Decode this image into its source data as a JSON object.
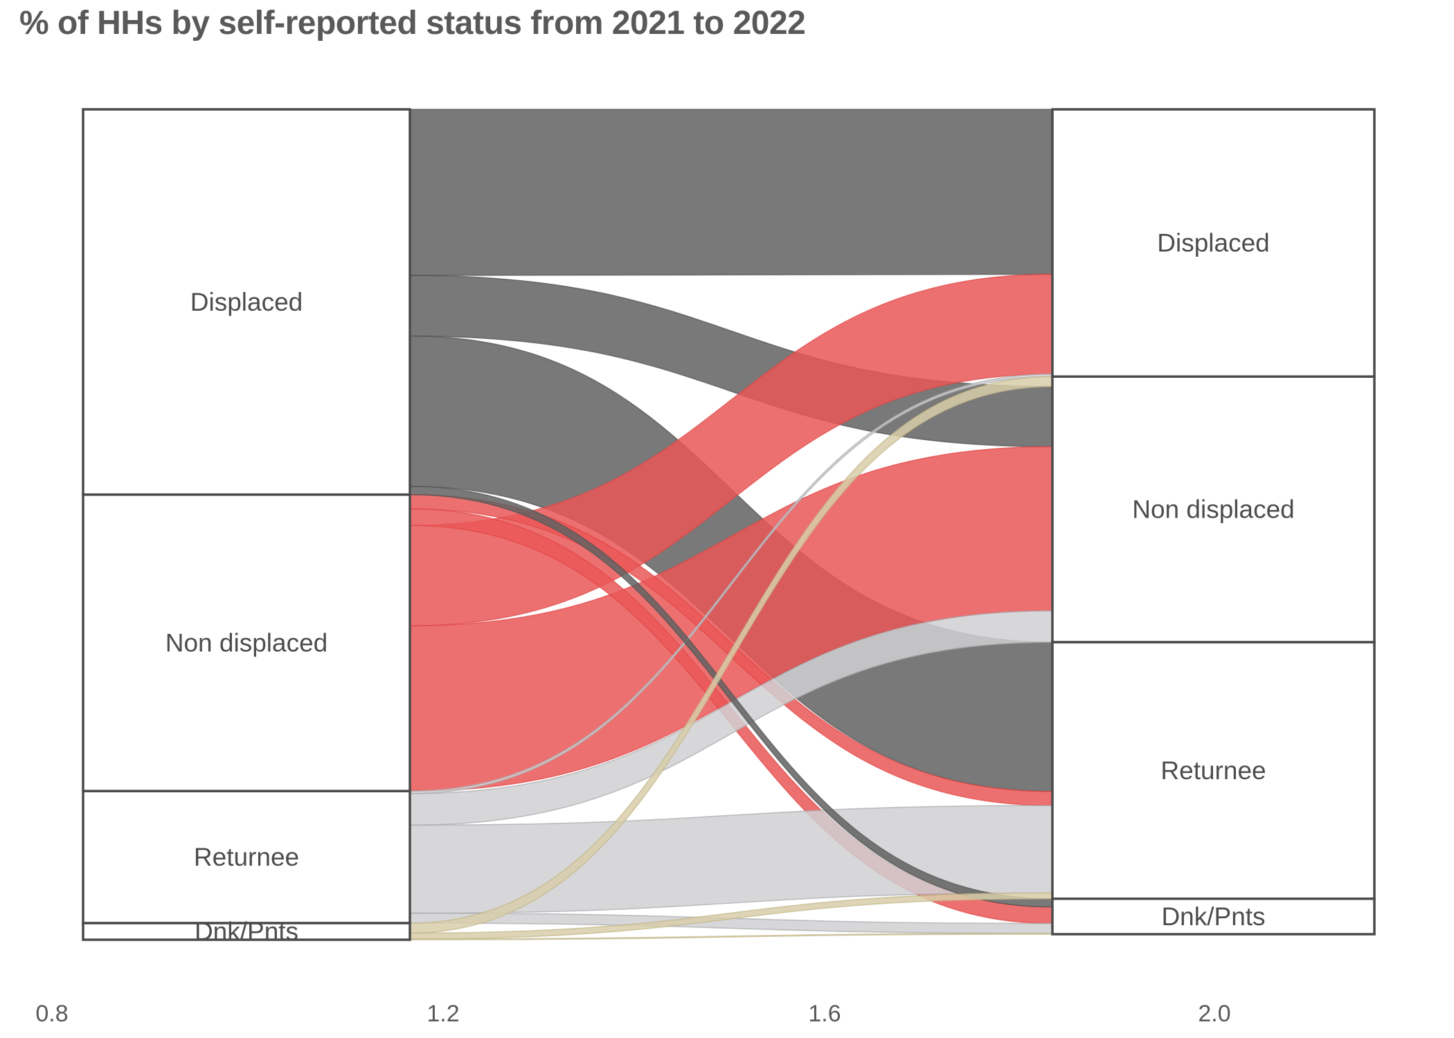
{
  "title": "% of HHs by self-reported status from 2021 to 2022",
  "x_axis_ticks": [
    "0.8",
    "1.2",
    "1.6",
    "2.0"
  ],
  "chart_data": {
    "type": "alluvial",
    "subtype": "sankey-two-column",
    "left_column_year": "2021",
    "right_column_year": "2022",
    "unit": "% of households",
    "grid": "off",
    "strata_2021": [
      {
        "label": "Displaced",
        "pct": 46.4
      },
      {
        "label": "Non displaced",
        "pct": 35.7
      },
      {
        "label": "Returnee",
        "pct": 15.9
      },
      {
        "label": "Dnk/Pnts",
        "pct": 2.0
      }
    ],
    "strata_2022": [
      {
        "label": "Displaced",
        "pct": 32.4
      },
      {
        "label": "Non displaced",
        "pct": 32.2
      },
      {
        "label": "Returnee",
        "pct": 31.1
      },
      {
        "label": "Dnk/Pnts",
        "pct": 4.3
      }
    ],
    "flows": [
      {
        "from": "Displaced",
        "to": "Displaced",
        "pct": 20.0
      },
      {
        "from": "Displaced",
        "to": "Non displaced",
        "pct": 7.3
      },
      {
        "from": "Displaced",
        "to": "Returnee",
        "pct": 18.1
      },
      {
        "from": "Non displaced",
        "to": "Displaced",
        "pct": 12.1
      },
      {
        "from": "Non displaced",
        "to": "Non displaced",
        "pct": 19.9
      },
      {
        "from": "Non displaced",
        "to": "Returnee",
        "pct": 1.7
      },
      {
        "from": "Non displaced",
        "to": "Dnk/Pnts",
        "pct": 2.0
      },
      {
        "from": "Returnee",
        "to": "Displaced",
        "pct": 0.3
      },
      {
        "from": "Returnee",
        "to": "Non displaced",
        "pct": 3.8
      },
      {
        "from": "Returnee",
        "to": "Returnee",
        "pct": 10.6
      },
      {
        "from": "Returnee",
        "to": "Dnk/Pnts",
        "pct": 1.2
      },
      {
        "from": "Displaced",
        "to": "Dnk/Pnts",
        "pct": 1.0
      },
      {
        "from": "Dnk/Pnts",
        "to": "Non displaced",
        "pct": 1.2
      },
      {
        "from": "Dnk/Pnts",
        "to": "Returnee",
        "pct": 0.7
      },
      {
        "from": "Dnk/Pnts",
        "to": "Dnk/Pnts",
        "pct": 0.1
      }
    ],
    "flow_colors_by_origin": {
      "Displaced": {
        "fill": "#616161",
        "stroke": "#525252"
      },
      "Non displaced": {
        "fill": "#ea5757",
        "stroke": "#e04646"
      },
      "Returnee": {
        "fill": "#d0d0d3",
        "stroke": "#a9a9ad"
      },
      "Dnk/Pnts": {
        "fill": "#d8ceaa",
        "stroke": "#c2b689"
      }
    },
    "outgoing_order_2021": {
      "Displaced": [
        "Displaced",
        "Non displaced",
        "Returnee",
        "Dnk/Pnts"
      ],
      "Non displaced": [
        "Returnee",
        "Dnk/Pnts",
        "Displaced",
        "Non displaced"
      ],
      "Returnee": [
        "Displaced",
        "Non displaced",
        "Returnee",
        "Dnk/Pnts"
      ],
      "Dnk/Pnts": [
        "Non displaced",
        "Returnee",
        "Dnk/Pnts"
      ]
    },
    "incoming_order_2022": {
      "Displaced": [
        "Displaced",
        "Non displaced",
        "Returnee"
      ],
      "Non displaced": [
        "Dnk/Pnts",
        "Displaced",
        "Non displaced",
        "Returnee"
      ],
      "Returnee": [
        "Displaced",
        "Non displaced",
        "Returnee",
        "Dnk/Pnts"
      ],
      "Dnk/Pnts": [
        "Displaced",
        "Non displaced",
        "Returnee",
        "Dnk/Pnts"
      ]
    }
  }
}
